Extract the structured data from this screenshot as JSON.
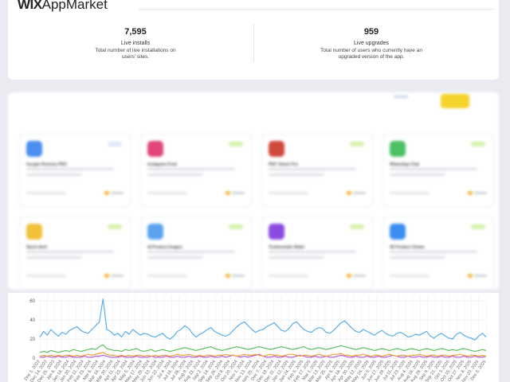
{
  "header": {
    "logo_mark": "WIX",
    "logo_text": "AppMarket"
  },
  "stats": [
    {
      "value": "7,595",
      "label": "Live installs",
      "description": "Total number of live installations on users' sites."
    },
    {
      "value": "959",
      "label": "Live upgrades",
      "description": "Total number of users who currently have an upgraded version of the app."
    }
  ],
  "apps": [
    {
      "name": "Google Reviews PRO",
      "icon_color": "#4a8ef0",
      "badge_color": "#dbe7fb"
    },
    {
      "name": "Instagram Feed",
      "icon_color": "#e0457b",
      "badge_color": "#d4f2a8"
    },
    {
      "name": "PDF Viewer Pro",
      "icon_color": "#d04a3c",
      "badge_color": "#d4f2a8"
    },
    {
      "name": "WhatsApp Chat",
      "icon_color": "#4cc164",
      "badge_color": "#d4f2a8"
    },
    {
      "name": "Stock Alert",
      "icon_color": "#f2c13a",
      "badge_color": "#d4f2a8"
    },
    {
      "name": "AI Product Images",
      "icon_color": "#5aa2f0",
      "badge_color": "#d4f2a8"
    },
    {
      "name": "Testimonials Slider",
      "icon_color": "#8a4ce0",
      "badge_color": "#d4f2a8"
    },
    {
      "name": "3D Product Viewer",
      "icon_color": "#3a8ef0",
      "badge_color": "#d4f2a8"
    }
  ],
  "chart_data": {
    "type": "line",
    "ylim": [
      0,
      65
    ],
    "yticks": [
      0,
      20,
      40,
      60
    ],
    "x_labels": [
      "Dec 1, 2023",
      "Dec 14, 2023",
      "Dec 25, 2023",
      "Jan 6, 2024",
      "Jan 18, 2024",
      "Jan 30, 2024",
      "Feb 11, 2024",
      "Feb 23, 2024",
      "Mar 6, 2024",
      "Mar 18, 2024",
      "Mar 30, 2024",
      "Apr 11, 2024",
      "Apr 23, 2024",
      "May 5, 2024",
      "May 17, 2024",
      "May 29, 2024",
      "Jun 10, 2024",
      "Jun 22, 2024",
      "Jul 4, 2024",
      "Jul 16, 2024",
      "Jul 28, 2024",
      "Aug 9, 2024",
      "Aug 21, 2024",
      "Sep 2, 2024",
      "Sep 14, 2024",
      "Sep 26, 2024",
      "Oct 8, 2024",
      "Oct 20, 2024",
      "Nov 1, 2024",
      "Nov 13, 2024",
      "Nov 25, 2024",
      "Dec 7, 2024",
      "Dec 19, 2024",
      "Dec 31, 2024",
      "Jan 12, 2025",
      "Jan 24, 2025",
      "Feb 5, 2025",
      "Feb 17, 2025",
      "Mar 1, 2025",
      "Mar 13, 2025",
      "Mar 25, 2025",
      "Apr 6, 2025",
      "Apr 18, 2025",
      "Apr 30, 2025",
      "May 12, 2025",
      "May 24, 2025",
      "Jun 5, 2025",
      "Jun 17, 2025",
      "Jun 29, 2025",
      "Jul 11, 2025",
      "Jul 23, 2025",
      "Aug 4, 2025",
      "Aug 16, 2025",
      "Aug 28, 2025",
      "Sep 9, 2025",
      "Sep 21, 2025",
      "Oct 3, 2025",
      "Oct 15, 2025",
      "Oct 27, 2025",
      "Nov 8, 2025",
      "Nov 20, 2025",
      "Dec 5, 2025"
    ],
    "series": [
      {
        "color": "#5aaee6",
        "values": [
          22,
          28,
          24,
          30,
          26,
          23,
          27,
          25,
          29,
          31,
          33,
          29,
          27,
          26,
          30,
          34,
          38,
          62,
          30,
          28,
          24,
          26,
          22,
          28,
          25,
          30,
          27,
          24,
          26,
          25,
          23,
          22,
          24,
          26,
          22,
          20,
          23,
          28,
          30,
          34,
          31,
          26,
          22,
          25,
          27,
          30,
          32,
          28,
          26,
          24,
          23,
          25,
          29,
          33,
          36,
          38,
          34,
          30,
          27,
          29,
          30,
          33,
          35,
          37,
          33,
          29,
          28,
          31,
          36,
          38,
          34,
          30,
          28,
          27,
          30,
          32,
          31,
          27,
          26,
          29,
          33,
          37,
          39,
          35,
          31,
          28,
          27,
          30,
          28,
          26,
          24,
          27,
          29,
          26,
          24,
          23,
          26,
          27,
          25,
          22,
          23,
          25,
          24,
          26,
          28,
          23,
          21,
          24,
          26,
          23,
          21,
          20,
          25,
          27,
          24,
          22,
          21,
          19,
          23,
          26,
          22
        ]
      },
      {
        "color": "#5bbd62",
        "values": [
          6,
          7,
          6,
          8,
          7,
          6,
          7,
          8,
          7,
          9,
          8,
          7,
          8,
          9,
          10,
          9,
          12,
          14,
          10,
          9,
          8,
          8,
          7,
          9,
          8,
          9,
          10,
          8,
          7,
          8,
          9,
          7,
          8,
          9,
          8,
          7,
          8,
          9,
          10,
          11,
          10,
          9,
          8,
          9,
          10,
          11,
          12,
          10,
          9,
          8,
          9,
          10,
          11,
          12,
          11,
          10,
          9,
          10,
          11,
          12,
          11,
          10,
          9,
          10,
          11,
          12,
          11,
          10,
          9,
          10,
          11,
          12,
          10,
          9,
          10,
          11,
          10,
          9,
          10,
          11,
          12,
          13,
          12,
          11,
          10,
          9,
          10,
          11,
          10,
          9,
          8,
          9,
          10,
          9,
          8,
          9,
          10,
          9,
          8,
          9,
          10,
          9,
          8,
          9,
          10,
          9,
          8,
          9,
          10,
          9,
          8,
          9,
          8,
          9,
          10,
          9,
          8,
          7,
          8,
          9,
          8
        ]
      },
      {
        "color": "#f0a03a",
        "values": [
          2,
          3,
          2,
          3,
          2,
          3,
          2,
          3,
          3,
          2,
          3,
          2,
          3,
          4,
          3,
          4,
          5,
          6,
          4,
          3,
          3,
          2,
          3,
          2,
          3,
          2,
          3,
          3,
          2,
          3,
          2,
          3,
          2,
          3,
          3,
          2,
          3,
          4,
          3,
          3,
          4,
          3,
          2,
          3,
          2,
          3,
          3,
          2,
          3,
          3,
          4,
          3,
          3,
          2,
          3,
          4,
          3,
          3,
          4,
          3,
          2,
          3,
          4,
          3,
          3,
          2,
          3,
          4,
          4,
          3,
          2,
          3,
          3,
          2,
          3,
          4,
          3,
          2,
          3,
          4,
          4,
          5,
          3,
          3,
          2,
          3,
          3,
          4,
          3,
          2,
          3,
          3,
          2,
          3,
          4,
          3,
          2,
          3,
          3,
          2,
          3,
          3,
          4,
          3,
          2,
          3,
          3,
          2,
          3,
          3,
          2,
          3,
          3,
          4,
          3,
          2,
          3,
          3,
          2,
          3,
          2
        ]
      },
      {
        "color": "#b45ad6",
        "values": [
          1,
          1,
          2,
          1,
          1,
          2,
          1,
          1,
          2,
          1,
          1,
          1,
          2,
          1,
          1,
          2,
          2,
          3,
          2,
          1,
          1,
          1,
          2,
          1,
          1,
          1,
          2,
          1,
          1,
          1,
          2,
          1,
          1,
          1,
          2,
          1,
          1,
          2,
          1,
          1,
          2,
          1,
          1,
          2,
          1,
          1,
          2,
          1,
          1,
          2,
          1,
          2,
          3,
          2,
          1,
          2,
          1,
          2,
          3,
          4,
          2,
          1,
          1,
          2,
          1,
          1,
          2,
          1,
          1,
          2,
          3,
          2,
          1,
          1,
          2,
          1,
          1,
          2,
          1,
          1,
          2,
          3,
          2,
          1,
          1,
          2,
          1,
          1,
          2,
          1,
          1,
          2,
          1,
          1,
          2,
          3,
          2,
          1,
          1,
          2,
          1,
          1,
          2,
          1,
          1,
          2,
          1,
          1,
          2,
          1,
          1,
          2,
          1,
          1,
          2,
          1,
          1,
          2,
          1,
          1,
          2
        ]
      }
    ]
  }
}
